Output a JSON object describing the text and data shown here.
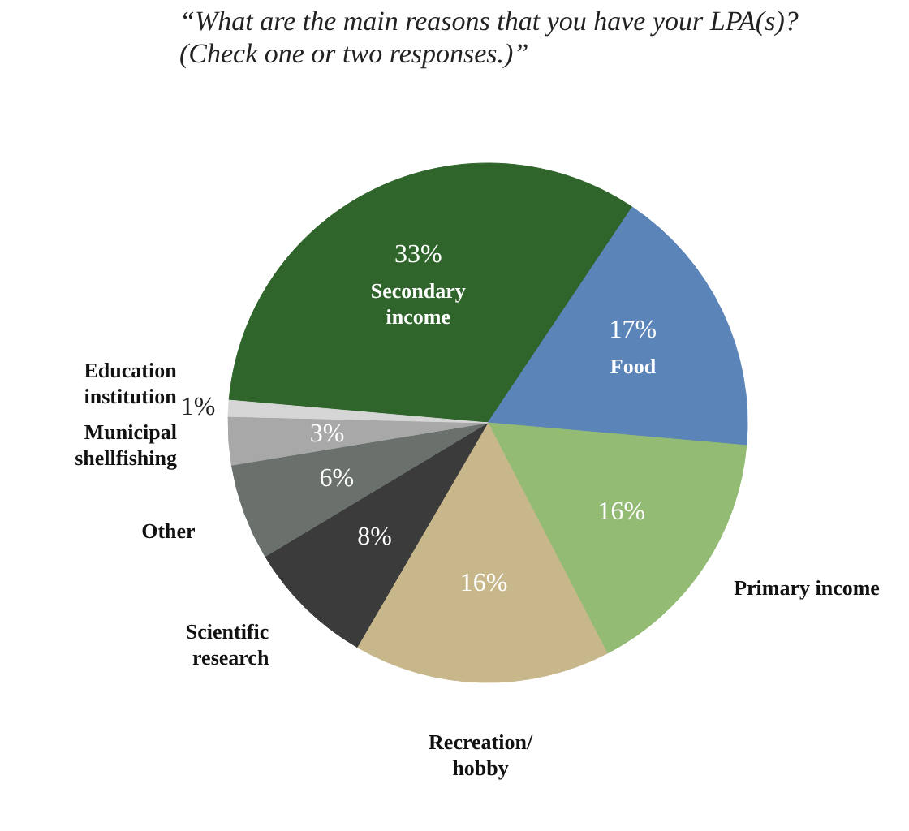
{
  "chart_data": {
    "type": "pie",
    "title": "“What are the main reasons that you have your LPA(s)?\n(Check one or two responses.)”",
    "categories": [
      "Secondary\nincome",
      "Food",
      "Primary income",
      "Recreation/\nhobby",
      "Scientific\nresearch",
      "Other",
      "Municipal\nshellfishing",
      "Education\ninstitution"
    ],
    "values": [
      33,
      17,
      16,
      16,
      8,
      6,
      3,
      1
    ],
    "value_labels": [
      "33%",
      "17%",
      "16%",
      "16%",
      "8%",
      "6%",
      "3%",
      "1%"
    ],
    "colors": [
      "#2f652b",
      "#5b84b8",
      "#93bb73",
      "#c8b78b",
      "#3b3b3b",
      "#6a706b",
      "#a8a8a8",
      "#d6d6d6"
    ]
  }
}
